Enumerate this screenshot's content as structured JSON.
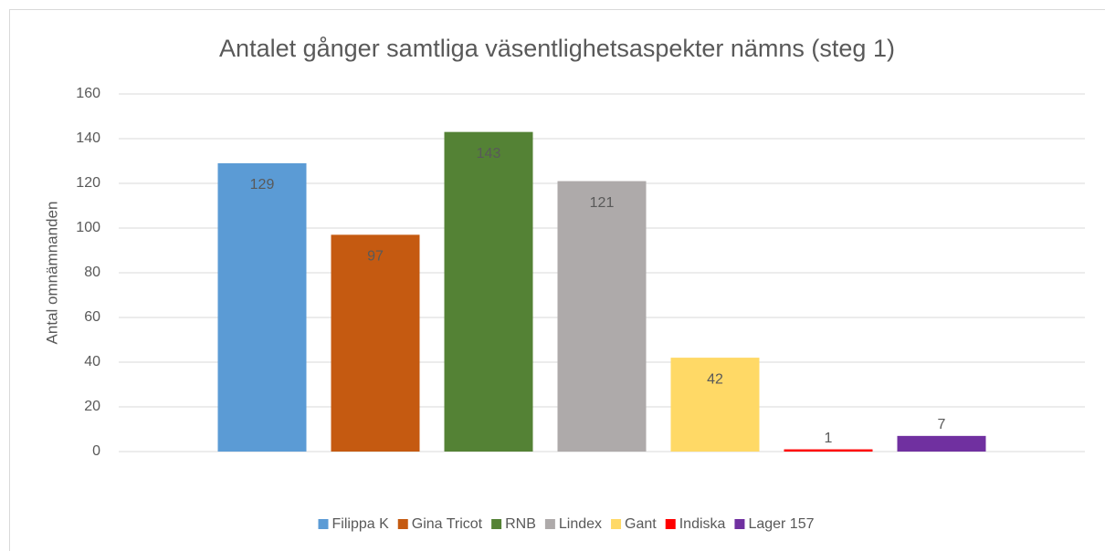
{
  "chart_data": {
    "type": "bar",
    "title": "Antalet gånger samtliga väsentlighetsaspekter nämns (steg 1)",
    "y_label": "Antal omnämnanden",
    "categories": [
      null
    ],
    "series": [
      {
        "name": "Filippa K",
        "color": "#5b9bd5",
        "values": [
          129
        ]
      },
      {
        "name": "Gina Tricot",
        "color": "#c55a11",
        "values": [
          97
        ]
      },
      {
        "name": "RNB",
        "color": "#548235",
        "values": [
          143
        ]
      },
      {
        "name": "Lindex",
        "color": "#aeaaaa",
        "values": [
          121
        ]
      },
      {
        "name": "Gant",
        "color": "#ffd966",
        "values": [
          42
        ]
      },
      {
        "name": "Indiska",
        "color": "#ff0000",
        "values": [
          1
        ]
      },
      {
        "name": "Lager 157",
        "color": "#7030a0",
        "values": [
          7
        ]
      }
    ],
    "ylim": [
      0,
      160
    ],
    "yticks": [
      0,
      20,
      40,
      60,
      80,
      100,
      120,
      140,
      160
    ],
    "grid": true,
    "legend": "bottom",
    "data_labels": true
  }
}
